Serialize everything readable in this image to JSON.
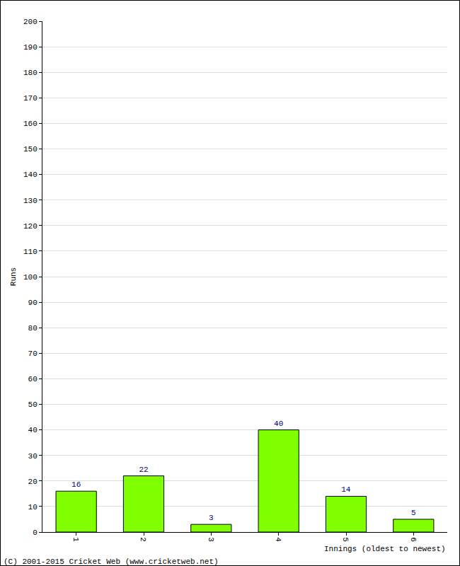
{
  "chart_data": {
    "type": "bar",
    "xlabel": "Innings (oldest to newest)",
    "ylabel": "Runs",
    "categories": [
      "1",
      "2",
      "3",
      "4",
      "5",
      "6"
    ],
    "values": [
      16,
      22,
      3,
      40,
      14,
      5
    ],
    "color": "#80ff00",
    "ylim": [
      0,
      200
    ],
    "yticks": [
      0,
      10,
      20,
      30,
      40,
      50,
      60,
      70,
      80,
      90,
      100,
      110,
      120,
      130,
      140,
      150,
      160,
      170,
      180,
      190,
      200
    ],
    "grid": true,
    "data_labels": true,
    "annotations": [
      "(C) 2001-2015 Cricket Web (www.cricketweb.net)"
    ]
  }
}
